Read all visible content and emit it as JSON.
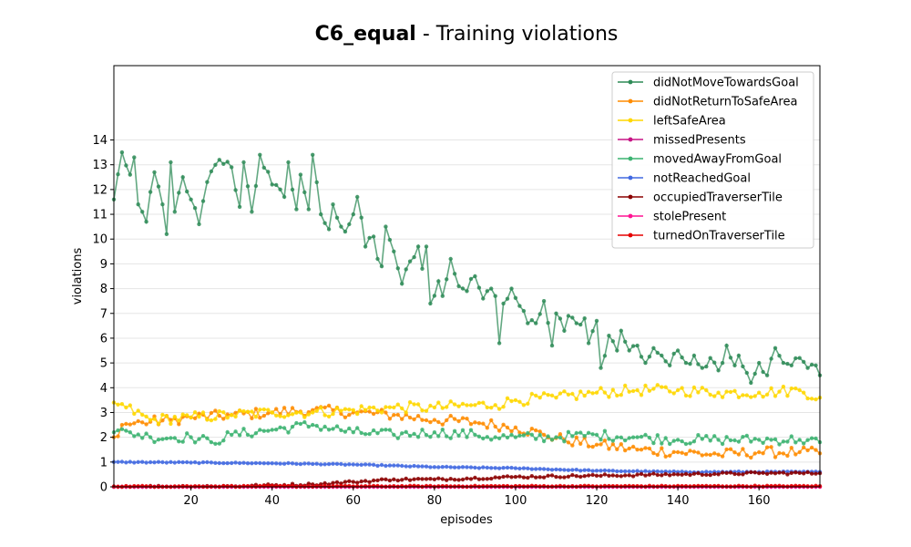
{
  "chart_data": {
    "type": "line",
    "title_bold": "C6_equal",
    "title_rest": " - Training violations",
    "xlabel": "episodes",
    "ylabel": "violations",
    "xlim": [
      1,
      175
    ],
    "ylim": [
      0,
      17
    ],
    "x_ticks": [
      "20",
      "40",
      "60",
      "80",
      "100",
      "120",
      "140",
      "160"
    ],
    "y_ticks": [
      "0",
      "1",
      "2",
      "3",
      "4",
      "5",
      "6",
      "7",
      "8",
      "9",
      "10",
      "11",
      "12",
      "13",
      "14"
    ],
    "grid": "horizontal",
    "legend_placement": "top-right",
    "series": [
      {
        "name": "didNotMoveTowardsGoal",
        "color": "#2e8b57",
        "anchors": [
          [
            1,
            11.6
          ],
          [
            3,
            13.5
          ],
          [
            5,
            12.6
          ],
          [
            6,
            13.3
          ],
          [
            7,
            11.4
          ],
          [
            9,
            10.7
          ],
          [
            11,
            12.7
          ],
          [
            13,
            11.4
          ],
          [
            14,
            10.2
          ],
          [
            15,
            13.1
          ],
          [
            16,
            11.1
          ],
          [
            18,
            12.5
          ],
          [
            20,
            11.6
          ],
          [
            22,
            10.6
          ],
          [
            24,
            12.3
          ],
          [
            27,
            13.2
          ],
          [
            30,
            12.9
          ],
          [
            32,
            11.3
          ],
          [
            33,
            13.1
          ],
          [
            35,
            11.1
          ],
          [
            37,
            13.4
          ],
          [
            40,
            12.2
          ],
          [
            43,
            11.7
          ],
          [
            44,
            13.1
          ],
          [
            46,
            11.2
          ],
          [
            47,
            12.6
          ],
          [
            49,
            11.2
          ],
          [
            50,
            13.4
          ],
          [
            52,
            11.0
          ],
          [
            54,
            10.4
          ],
          [
            55,
            11.4
          ],
          [
            57,
            10.5
          ],
          [
            58,
            10.3
          ],
          [
            60,
            11.0
          ],
          [
            61,
            11.7
          ],
          [
            63,
            9.7
          ],
          [
            65,
            10.1
          ],
          [
            66,
            9.2
          ],
          [
            67,
            8.9
          ],
          [
            68,
            10.5
          ],
          [
            70,
            9.5
          ],
          [
            72,
            8.2
          ],
          [
            74,
            9.1
          ],
          [
            76,
            9.7
          ],
          [
            77,
            8.8
          ],
          [
            78,
            9.7
          ],
          [
            79,
            7.4
          ],
          [
            81,
            8.3
          ],
          [
            82,
            7.7
          ],
          [
            84,
            9.2
          ],
          [
            86,
            8.1
          ],
          [
            88,
            7.9
          ],
          [
            90,
            8.5
          ],
          [
            92,
            7.6
          ],
          [
            94,
            8.0
          ],
          [
            95,
            7.7
          ],
          [
            96,
            5.8
          ],
          [
            97,
            7.4
          ],
          [
            99,
            8.0
          ],
          [
            101,
            7.3
          ],
          [
            103,
            6.6
          ],
          [
            105,
            6.6
          ],
          [
            107,
            7.5
          ],
          [
            109,
            5.7
          ],
          [
            110,
            7.0
          ],
          [
            112,
            6.3
          ],
          [
            113,
            6.9
          ],
          [
            115,
            6.6
          ],
          [
            117,
            6.8
          ],
          [
            118,
            5.8
          ],
          [
            120,
            6.7
          ],
          [
            121,
            4.8
          ],
          [
            123,
            6.1
          ],
          [
            125,
            5.5
          ],
          [
            126,
            6.3
          ],
          [
            128,
            5.5
          ],
          [
            130,
            5.7
          ],
          [
            132,
            5.0
          ],
          [
            134,
            5.6
          ],
          [
            136,
            5.3
          ],
          [
            138,
            4.9
          ],
          [
            140,
            5.5
          ],
          [
            142,
            5.0
          ],
          [
            144,
            5.3
          ],
          [
            146,
            4.8
          ],
          [
            148,
            5.2
          ],
          [
            150,
            4.7
          ],
          [
            152,
            5.7
          ],
          [
            154,
            4.9
          ],
          [
            155,
            5.3
          ],
          [
            157,
            4.6
          ],
          [
            158,
            4.2
          ],
          [
            160,
            5.0
          ],
          [
            162,
            4.5
          ],
          [
            164,
            5.6
          ],
          [
            166,
            5.0
          ],
          [
            168,
            4.9
          ],
          [
            170,
            5.2
          ],
          [
            172,
            4.8
          ],
          [
            174,
            4.9
          ],
          [
            175,
            4.5
          ]
        ],
        "noise": 0.2
      },
      {
        "name": "didNotReturnToSafeArea",
        "color": "#ff8c00",
        "anchors": [
          [
            1,
            2.0
          ],
          [
            3,
            2.5
          ],
          [
            8,
            2.6
          ],
          [
            15,
            2.7
          ],
          [
            20,
            2.8
          ],
          [
            30,
            2.9
          ],
          [
            40,
            3.0
          ],
          [
            50,
            3.1
          ],
          [
            60,
            3.0
          ],
          [
            70,
            2.9
          ],
          [
            80,
            2.7
          ],
          [
            90,
            2.6
          ],
          [
            100,
            2.4
          ],
          [
            107,
            2.1
          ],
          [
            112,
            1.9
          ],
          [
            120,
            1.7
          ],
          [
            130,
            1.5
          ],
          [
            140,
            1.4
          ],
          [
            150,
            1.3
          ],
          [
            160,
            1.4
          ],
          [
            170,
            1.4
          ],
          [
            175,
            1.35
          ]
        ],
        "noise": 0.22
      },
      {
        "name": "leftSafeArea",
        "color": "#ffd700",
        "anchors": [
          [
            1,
            3.4
          ],
          [
            4,
            3.2
          ],
          [
            10,
            2.7
          ],
          [
            20,
            2.8
          ],
          [
            30,
            2.9
          ],
          [
            40,
            3.0
          ],
          [
            50,
            3.0
          ],
          [
            60,
            3.1
          ],
          [
            70,
            3.2
          ],
          [
            80,
            3.2
          ],
          [
            90,
            3.3
          ],
          [
            95,
            3.3
          ],
          [
            100,
            3.5
          ],
          [
            110,
            3.6
          ],
          [
            120,
            3.8
          ],
          [
            130,
            3.9
          ],
          [
            140,
            3.9
          ],
          [
            150,
            3.8
          ],
          [
            160,
            3.8
          ],
          [
            170,
            3.9
          ],
          [
            175,
            3.6
          ]
        ],
        "noise": 0.22
      },
      {
        "name": "missedPresents",
        "color": "#c71585",
        "anchors": [
          [
            1,
            0.0
          ],
          [
            175,
            0.0
          ]
        ],
        "noise": 0.0
      },
      {
        "name": "movedAwayFromGoal",
        "color": "#3cb371",
        "anchors": [
          [
            1,
            2.2
          ],
          [
            5,
            2.2
          ],
          [
            10,
            2.0
          ],
          [
            20,
            2.0
          ],
          [
            25,
            1.8
          ],
          [
            30,
            2.1
          ],
          [
            40,
            2.3
          ],
          [
            50,
            2.5
          ],
          [
            60,
            2.2
          ],
          [
            70,
            2.1
          ],
          [
            80,
            2.2
          ],
          [
            90,
            2.1
          ],
          [
            95,
            2.0
          ],
          [
            100,
            2.0
          ],
          [
            110,
            2.0
          ],
          [
            120,
            2.1
          ],
          [
            130,
            2.0
          ],
          [
            140,
            1.9
          ],
          [
            150,
            1.9
          ],
          [
            160,
            1.9
          ],
          [
            170,
            1.9
          ],
          [
            175,
            1.8
          ]
        ],
        "noise": 0.2
      },
      {
        "name": "notReachedGoal",
        "color": "#4169e1",
        "anchors": [
          [
            1,
            1.0
          ],
          [
            20,
            0.98
          ],
          [
            40,
            0.95
          ],
          [
            60,
            0.9
          ],
          [
            80,
            0.8
          ],
          [
            100,
            0.75
          ],
          [
            120,
            0.65
          ],
          [
            140,
            0.6
          ],
          [
            160,
            0.6
          ],
          [
            175,
            0.6
          ]
        ],
        "noise": 0.02
      },
      {
        "name": "occupiedTraverserTile",
        "color": "#8b0000",
        "anchors": [
          [
            1,
            0.0
          ],
          [
            30,
            0.02
          ],
          [
            50,
            0.1
          ],
          [
            60,
            0.2
          ],
          [
            70,
            0.3
          ],
          [
            80,
            0.3
          ],
          [
            100,
            0.4
          ],
          [
            120,
            0.45
          ],
          [
            140,
            0.5
          ],
          [
            160,
            0.55
          ],
          [
            175,
            0.55
          ]
        ],
        "noise": 0.05
      },
      {
        "name": "stolePresent",
        "color": "#ff1493",
        "anchors": [
          [
            1,
            0.0
          ],
          [
            175,
            0.0
          ]
        ],
        "noise": 0.0
      },
      {
        "name": "turnedOnTraverserTile",
        "color": "#e50000",
        "anchors": [
          [
            1,
            0.02
          ],
          [
            175,
            0.03
          ]
        ],
        "noise": 0.02
      }
    ]
  }
}
